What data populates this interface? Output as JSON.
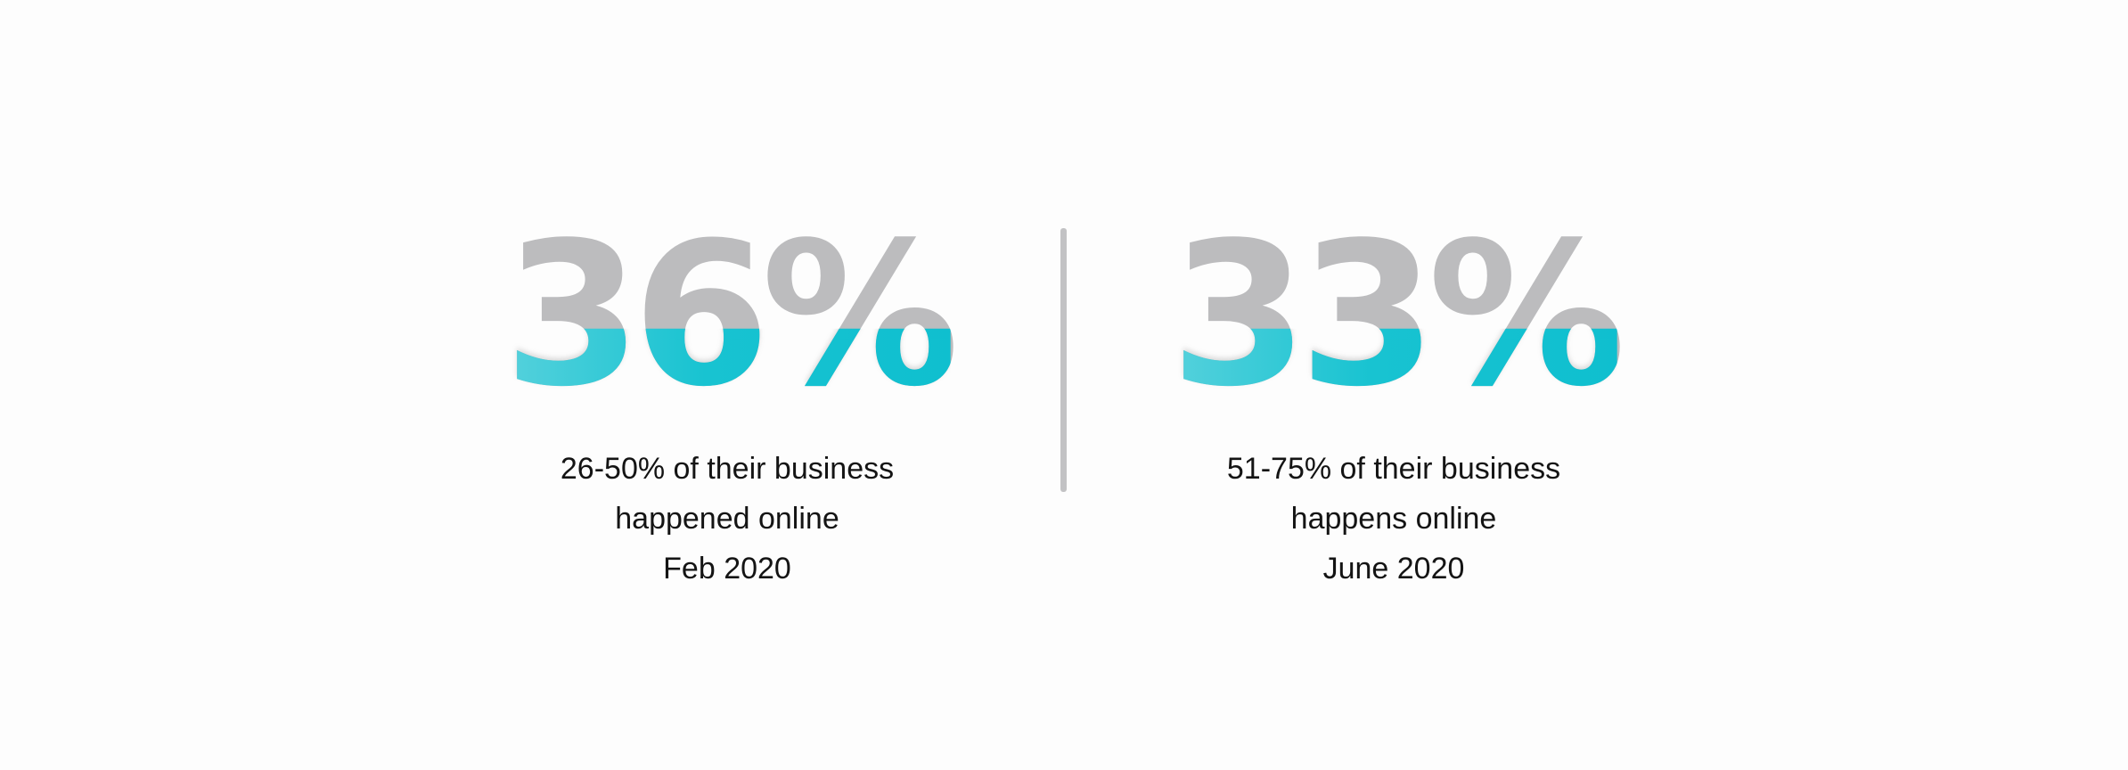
{
  "stats": [
    {
      "value": "36%",
      "lines": [
        "26-50% of their business",
        "happened online",
        "Feb 2020"
      ]
    },
    {
      "value": "33%",
      "lines": [
        "51-75% of their business",
        "happens online",
        "June 2020"
      ]
    }
  ],
  "colors": {
    "number_gray": "#bcbcbe",
    "number_teal": "#18c3d1",
    "divider": "#c2c2c4",
    "text": "#141414",
    "background": "#fdfdfd"
  }
}
